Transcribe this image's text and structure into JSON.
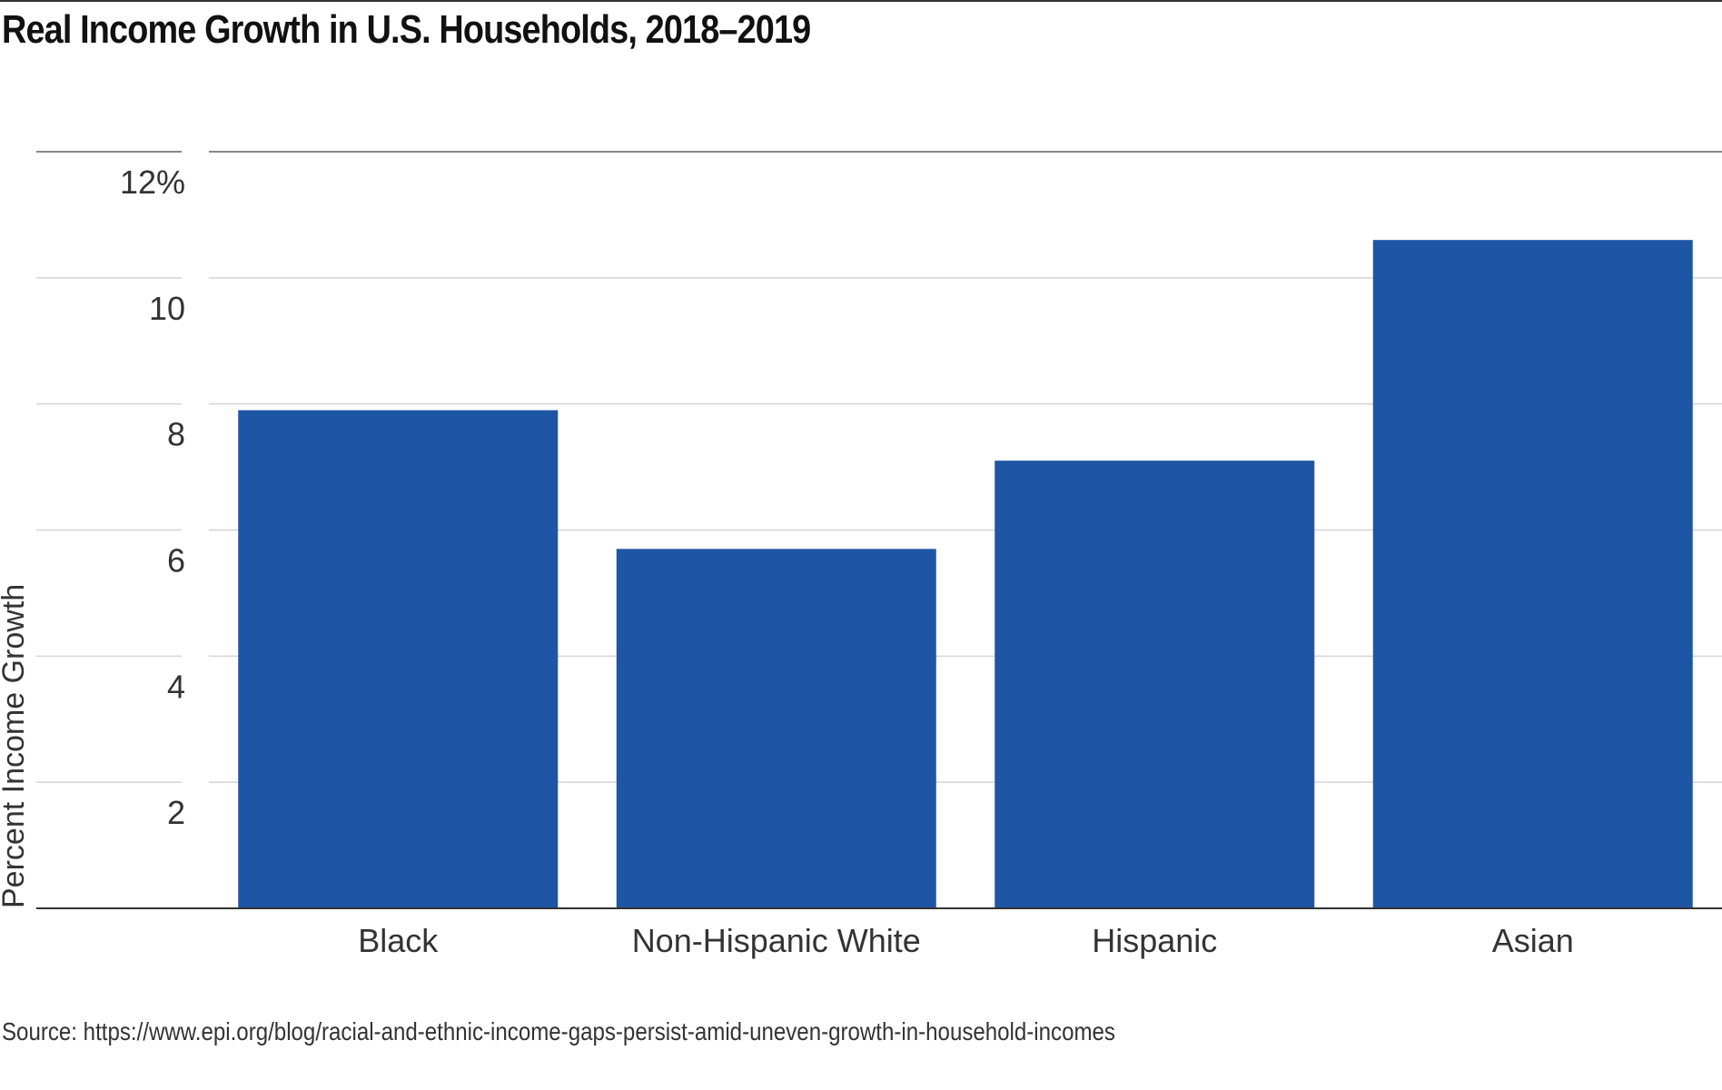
{
  "chart_data": {
    "type": "bar",
    "title": "Real Income Growth in U.S. Households, 2018–2019",
    "ylabel": "Percent Income Growth",
    "xlabel": "",
    "categories": [
      "Black",
      "Non-Hispanic White",
      "Hispanic",
      "Asian"
    ],
    "values": [
      7.9,
      5.7,
      7.1,
      10.6
    ],
    "ylim": [
      0,
      12
    ],
    "yticks": [
      2,
      4,
      6,
      8,
      10,
      12
    ],
    "ytick_labels": [
      "2",
      "4",
      "6",
      "8",
      "10",
      "12%"
    ],
    "grid": true,
    "legend": "none",
    "bar_color": "#1f55a5",
    "source": "Source: https://www.epi.org/blog/racial-and-ethnic-income-gaps-persist-amid-uneven-growth-in-household-incomes"
  }
}
